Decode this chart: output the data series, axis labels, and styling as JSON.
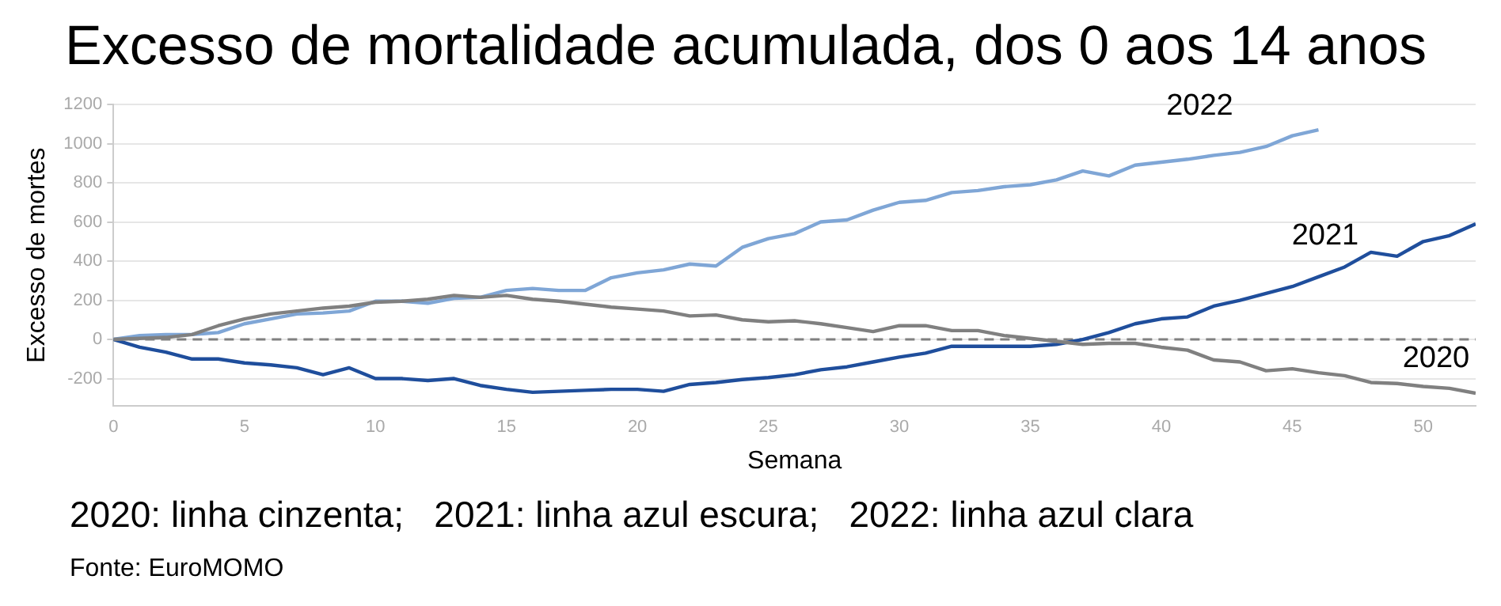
{
  "chart_data": {
    "type": "line",
    "title": "Excesso de mortalidade acumulada, dos 0 aos 14 anos",
    "xlabel": "Semana",
    "ylabel": "Excesso de mortes",
    "x": [
      0,
      1,
      2,
      3,
      4,
      5,
      6,
      7,
      8,
      9,
      10,
      11,
      12,
      13,
      14,
      15,
      16,
      17,
      18,
      19,
      20,
      21,
      22,
      23,
      24,
      25,
      26,
      27,
      28,
      29,
      30,
      31,
      32,
      33,
      34,
      35,
      36,
      37,
      38,
      39,
      40,
      41,
      42,
      43,
      44,
      45,
      46,
      47,
      48,
      49,
      50,
      51,
      52
    ],
    "series": [
      {
        "name": "2020",
        "color": "#808080",
        "values": [
          0,
          5,
          10,
          25,
          70,
          105,
          130,
          145,
          160,
          170,
          190,
          195,
          205,
          225,
          215,
          225,
          205,
          195,
          180,
          165,
          155,
          145,
          120,
          125,
          100,
          90,
          95,
          80,
          60,
          40,
          70,
          70,
          45,
          45,
          20,
          5,
          -10,
          -25,
          -20,
          -20,
          -40,
          -55,
          -105,
          -115,
          -160,
          -150,
          -170,
          -185,
          -220,
          -225,
          -240,
          -250,
          -275
        ]
      },
      {
        "name": "2021",
        "color": "#1f4e9c",
        "values": [
          0,
          -40,
          -65,
          -100,
          -100,
          -120,
          -130,
          -145,
          -180,
          -145,
          -200,
          -200,
          -210,
          -200,
          -235,
          -255,
          -270,
          -265,
          -260,
          -255,
          -255,
          -265,
          -230,
          -220,
          -205,
          -195,
          -180,
          -155,
          -140,
          -115,
          -90,
          -70,
          -35,
          -35,
          -35,
          -35,
          -25,
          0,
          35,
          80,
          105,
          115,
          170,
          200,
          235,
          270,
          320,
          370,
          445,
          425,
          500,
          530,
          590
        ]
      },
      {
        "name": "2022",
        "color": "#7fa6d6",
        "x": [
          0,
          1,
          2,
          3,
          4,
          5,
          6,
          7,
          8,
          9,
          10,
          11,
          12,
          13,
          14,
          15,
          16,
          17,
          18,
          19,
          20,
          21,
          22,
          23,
          24,
          25,
          26,
          27,
          28,
          29,
          30,
          31,
          32,
          33,
          34,
          35,
          36,
          37,
          38,
          39,
          40,
          41,
          42,
          43,
          44,
          45,
          46
        ],
        "values": [
          0,
          20,
          25,
          25,
          35,
          80,
          105,
          130,
          135,
          145,
          195,
          195,
          185,
          210,
          215,
          250,
          260,
          250,
          250,
          315,
          340,
          355,
          385,
          375,
          470,
          515,
          540,
          600,
          610,
          660,
          700,
          710,
          750,
          760,
          780,
          790,
          815,
          860,
          835,
          890,
          905,
          920,
          940,
          955,
          985,
          1040,
          1070
        ]
      }
    ],
    "xlim": [
      0,
      52
    ],
    "xticks": [
      0,
      5,
      10,
      15,
      20,
      25,
      30,
      35,
      40,
      45,
      50
    ],
    "ylim": [
      -340,
      1200
    ],
    "yticks": [
      -200,
      0,
      200,
      400,
      600,
      800,
      1000,
      1200
    ],
    "ref_lines": [
      {
        "axis": "y",
        "value": 0,
        "color": "#808080",
        "line_style": "dashed"
      }
    ],
    "grid": "y",
    "legend": false,
    "marker": "none",
    "line_style": "solid",
    "annotations": [
      "2020: linha cinzenta;   2021: linha azul escura;   2022: linha azul clara",
      "Fonte: EuroMOMO"
    ]
  }
}
